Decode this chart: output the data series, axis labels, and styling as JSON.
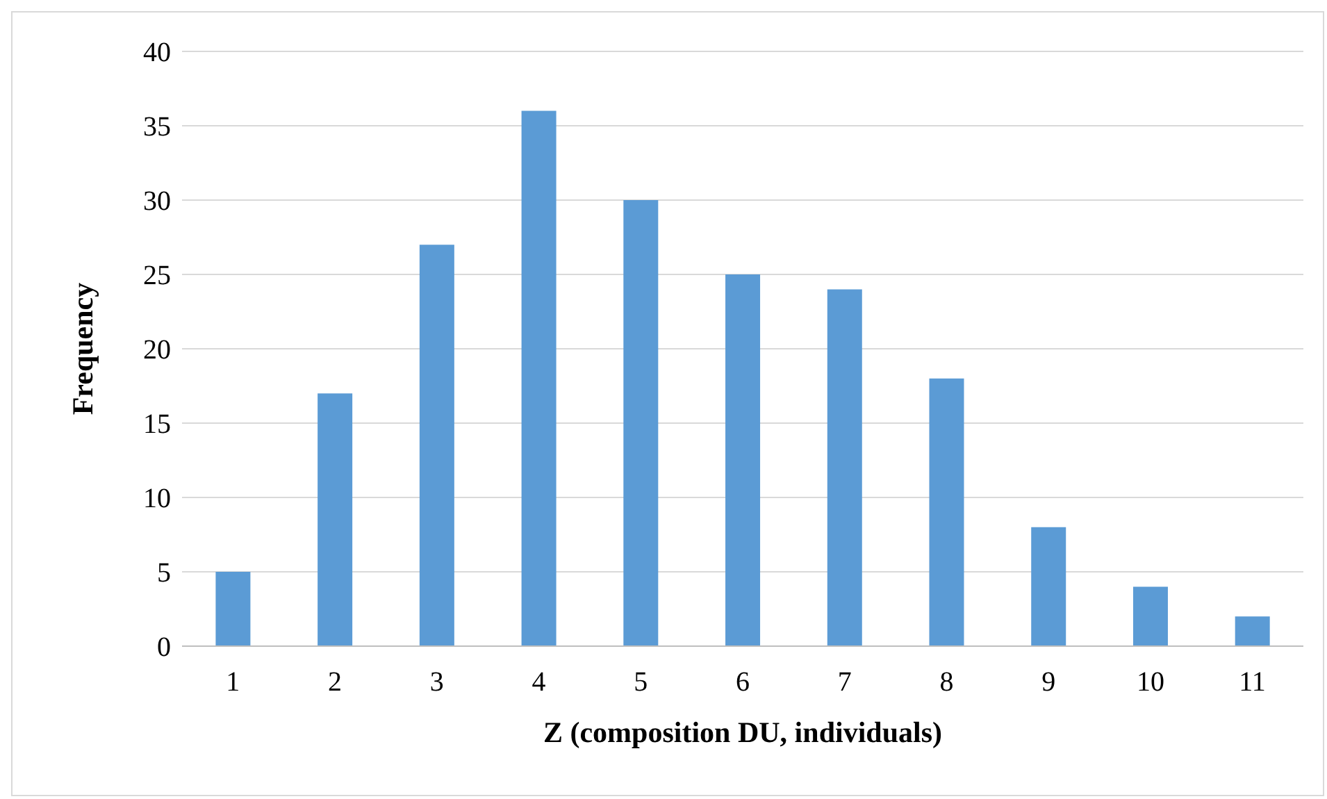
{
  "chart_data": {
    "type": "bar",
    "xlabel": "Z (composition DU, individuals)",
    "ylabel": "Frequency",
    "categories": [
      "1",
      "2",
      "3",
      "4",
      "5",
      "6",
      "7",
      "8",
      "9",
      "10",
      "11"
    ],
    "values": [
      5,
      17,
      27,
      36,
      30,
      25,
      24,
      18,
      8,
      4,
      2
    ],
    "color": "#5b9bd5",
    "ylim": [
      0,
      40
    ],
    "yticks": [
      0,
      5,
      10,
      15,
      20,
      25,
      30,
      35,
      40
    ],
    "grid": "y",
    "legend": false
  }
}
